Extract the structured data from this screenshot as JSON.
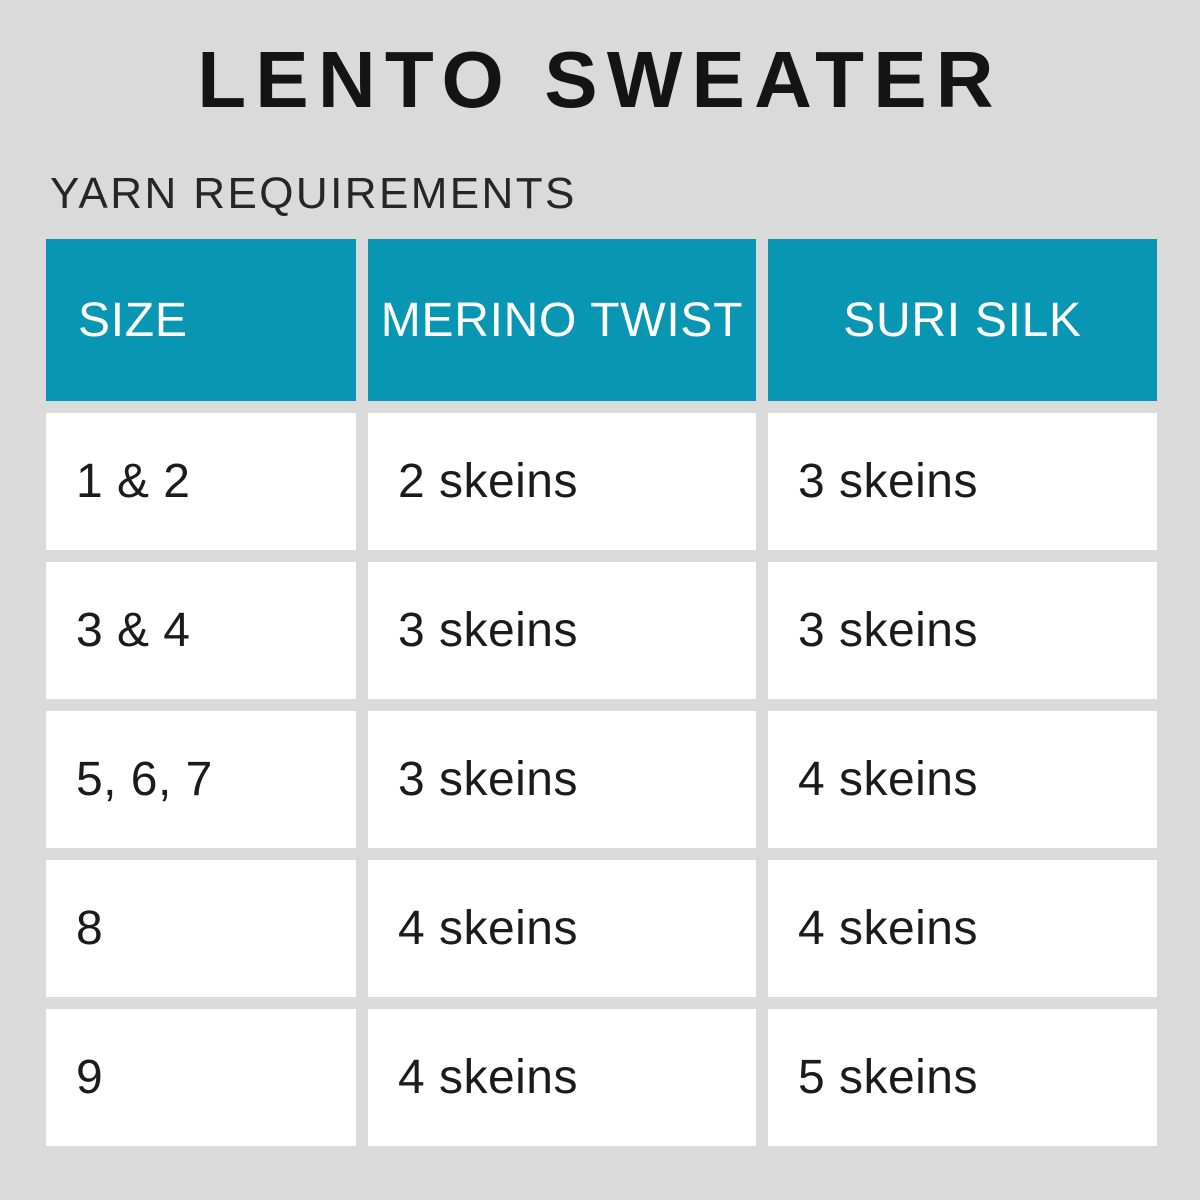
{
  "title": "LENTO SWEATER",
  "subtitle": "YARN REQUIREMENTS",
  "chart_data": {
    "type": "table",
    "title": "LENTO SWEATER",
    "subtitle": "YARN REQUIREMENTS",
    "columns": [
      "SIZE",
      "MERINO TWIST",
      "SURI SILK"
    ],
    "rows": [
      [
        "1 & 2",
        "2 skeins",
        "3 skeins"
      ],
      [
        "3 & 4",
        "3 skeins",
        "3 skeins"
      ],
      [
        "5, 6, 7",
        "3 skeins",
        "4 skeins"
      ],
      [
        "8",
        "4 skeins",
        "4 skeins"
      ],
      [
        "9",
        "4 skeins",
        "5 skeins"
      ]
    ],
    "units": "skeins",
    "layout": {
      "header_background": "teal",
      "header_text_alignment": [
        "left",
        "center",
        "center"
      ],
      "body_text_alignment": "left",
      "gridlines": "gap-separated cells"
    }
  },
  "colors": {
    "accent_teal": "#0996B3",
    "background_gray": "#DADADA",
    "cell_white": "#FFFFFF",
    "header_text": "#FFFFFF",
    "body_text": "#1B1B1B",
    "title_text": "#141414"
  }
}
